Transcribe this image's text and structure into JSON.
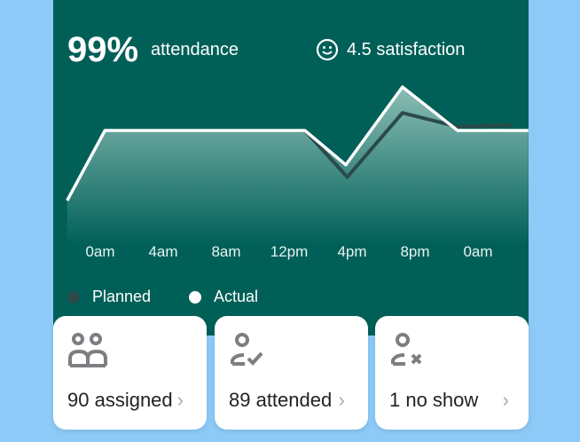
{
  "header": {
    "attendance_pct": "99%",
    "attendance_label": "attendance",
    "satisfaction": "4.5 satisfaction"
  },
  "chart_data": {
    "type": "line",
    "x_tick_labels": [
      "0am",
      "4am",
      "8am",
      "12pm",
      "4pm",
      "8pm",
      "0am"
    ],
    "x_ticks_hours": [
      0,
      4,
      8,
      12,
      16,
      20,
      24
    ],
    "series": [
      {
        "name": "Planned",
        "color": "#2b4a4a",
        "x": [
          13,
          15.7,
          19.2,
          22.7,
          26.2
        ],
        "y": [
          71.5,
          41,
          83,
          74,
          75
        ]
      },
      {
        "name": "Actual",
        "color": "#ffffff",
        "x": [
          -2.1,
          0.3,
          13,
          15.6,
          19.2,
          22.7,
          27.2
        ],
        "y": [
          25.6,
          71.5,
          71.5,
          49,
          100,
          71.5,
          71.5
        ]
      }
    ],
    "ylim": [
      0,
      100
    ]
  },
  "legend": {
    "planned": "Planned",
    "actual": "Actual"
  },
  "stats": [
    {
      "label": "90 assigned",
      "icon": "people-icon"
    },
    {
      "label": "89 attended",
      "icon": "person-check-icon"
    },
    {
      "label": "1 no show",
      "icon": "person-x-icon"
    }
  ],
  "chevron": "›"
}
